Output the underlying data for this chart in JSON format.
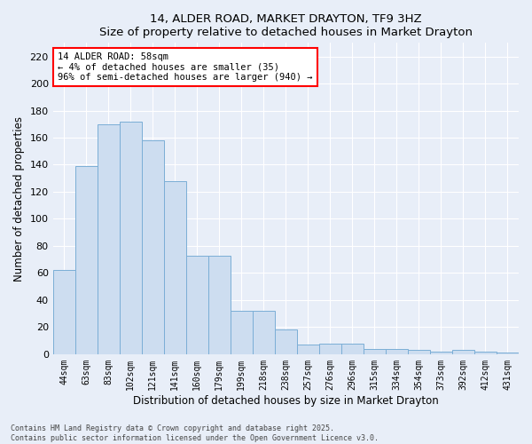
{
  "title": "14, ALDER ROAD, MARKET DRAYTON, TF9 3HZ",
  "subtitle": "Size of property relative to detached houses in Market Drayton",
  "xlabel": "Distribution of detached houses by size in Market Drayton",
  "ylabel": "Number of detached properties",
  "categories": [
    "44sqm",
    "63sqm",
    "83sqm",
    "102sqm",
    "121sqm",
    "141sqm",
    "160sqm",
    "179sqm",
    "199sqm",
    "218sqm",
    "238sqm",
    "257sqm",
    "276sqm",
    "296sqm",
    "315sqm",
    "334sqm",
    "354sqm",
    "373sqm",
    "392sqm",
    "412sqm",
    "431sqm"
  ],
  "values": [
    62,
    139,
    170,
    172,
    158,
    128,
    73,
    73,
    32,
    32,
    18,
    7,
    8,
    8,
    4,
    4,
    3,
    2,
    3,
    2,
    1
  ],
  "bar_color": "#cdddf0",
  "bar_edge_color": "#7baed6",
  "background_color": "#e8eef8",
  "ylim": [
    0,
    230
  ],
  "yticks": [
    0,
    20,
    40,
    60,
    80,
    100,
    120,
    140,
    160,
    180,
    200,
    220
  ],
  "annotation_title": "14 ALDER ROAD: 58sqm",
  "annotation_line1": "← 4% of detached houses are smaller (35)",
  "annotation_line2": "96% of semi-detached houses are larger (940) →",
  "footer_line1": "Contains HM Land Registry data © Crown copyright and database right 2025.",
  "footer_line2": "Contains public sector information licensed under the Open Government Licence v3.0."
}
